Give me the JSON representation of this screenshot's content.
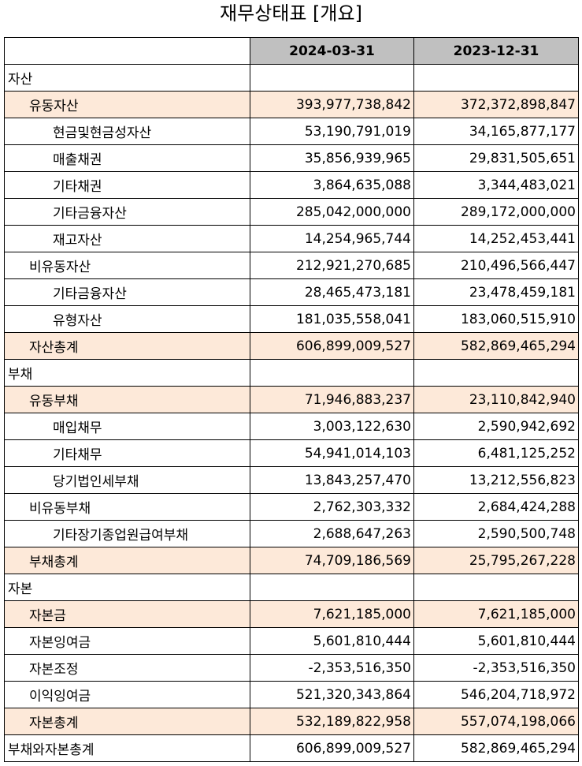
{
  "title": "재무상태표 [개요]",
  "columns": [
    "",
    "2024-03-31",
    "2023-12-31"
  ],
  "rows": [
    {
      "label": "자산",
      "level": 0,
      "highlight": false,
      "v1": "",
      "v2": ""
    },
    {
      "label": "유동자산",
      "level": 1,
      "highlight": true,
      "v1": "393,977,738,842",
      "v2": "372,372,898,847"
    },
    {
      "label": "현금및현금성자산",
      "level": 2,
      "highlight": false,
      "v1": "53,190,791,019",
      "v2": "34,165,877,177"
    },
    {
      "label": "매출채권",
      "level": 2,
      "highlight": false,
      "v1": "35,856,939,965",
      "v2": "29,831,505,651"
    },
    {
      "label": "기타채권",
      "level": 2,
      "highlight": false,
      "v1": "3,864,635,088",
      "v2": "3,344,483,021"
    },
    {
      "label": "기타금융자산",
      "level": 2,
      "highlight": false,
      "v1": "285,042,000,000",
      "v2": "289,172,000,000"
    },
    {
      "label": "재고자산",
      "level": 2,
      "highlight": false,
      "v1": "14,254,965,744",
      "v2": "14,252,453,441"
    },
    {
      "label": "비유동자산",
      "level": 1,
      "highlight": false,
      "v1": "212,921,270,685",
      "v2": "210,496,566,447"
    },
    {
      "label": "기타금융자산",
      "level": 2,
      "highlight": false,
      "v1": "28,465,473,181",
      "v2": "23,478,459,181"
    },
    {
      "label": "유형자산",
      "level": 2,
      "highlight": false,
      "v1": "181,035,558,041",
      "v2": "183,060,515,910"
    },
    {
      "label": "자산총계",
      "level": 1,
      "highlight": true,
      "v1": "606,899,009,527",
      "v2": "582,869,465,294"
    },
    {
      "label": "부채",
      "level": 0,
      "highlight": false,
      "v1": "",
      "v2": ""
    },
    {
      "label": "유동부채",
      "level": 1,
      "highlight": true,
      "v1": "71,946,883,237",
      "v2": "23,110,842,940"
    },
    {
      "label": "매입채무",
      "level": 2,
      "highlight": false,
      "v1": "3,003,122,630",
      "v2": "2,590,942,692"
    },
    {
      "label": "기타채무",
      "level": 2,
      "highlight": false,
      "v1": "54,941,014,103",
      "v2": "6,481,125,252"
    },
    {
      "label": "당기법인세부채",
      "level": 2,
      "highlight": false,
      "v1": "13,843,257,470",
      "v2": "13,212,556,823"
    },
    {
      "label": "비유동부채",
      "level": 1,
      "highlight": false,
      "v1": "2,762,303,332",
      "v2": "2,684,424,288"
    },
    {
      "label": "기타장기종업원급여부채",
      "level": 2,
      "highlight": false,
      "v1": "2,688,647,263",
      "v2": "2,590,500,748"
    },
    {
      "label": "부채총계",
      "level": 1,
      "highlight": true,
      "v1": "74,709,186,569",
      "v2": "25,795,267,228"
    },
    {
      "label": "자본",
      "level": 0,
      "highlight": false,
      "v1": "",
      "v2": ""
    },
    {
      "label": "자본금",
      "level": 1,
      "highlight": true,
      "v1": "7,621,185,000",
      "v2": "7,621,185,000"
    },
    {
      "label": "자본잉여금",
      "level": 1,
      "highlight": false,
      "v1": "5,601,810,444",
      "v2": "5,601,810,444"
    },
    {
      "label": "자본조정",
      "level": 1,
      "highlight": false,
      "v1": "-2,353,516,350",
      "v2": "-2,353,516,350"
    },
    {
      "label": "이익잉여금",
      "level": 1,
      "highlight": false,
      "v1": "521,320,343,864",
      "v2": "546,204,718,972"
    },
    {
      "label": "자본총계",
      "level": 1,
      "highlight": true,
      "v1": "532,189,822,958",
      "v2": "557,074,198,066"
    },
    {
      "label": "부채와자본총계",
      "level": 0,
      "highlight": false,
      "v1": "606,899,009,527",
      "v2": "582,869,465,294"
    }
  ],
  "colors": {
    "header_bg": "#c0c0c0",
    "highlight_bg": "#fde9d9",
    "border": "#000000"
  }
}
